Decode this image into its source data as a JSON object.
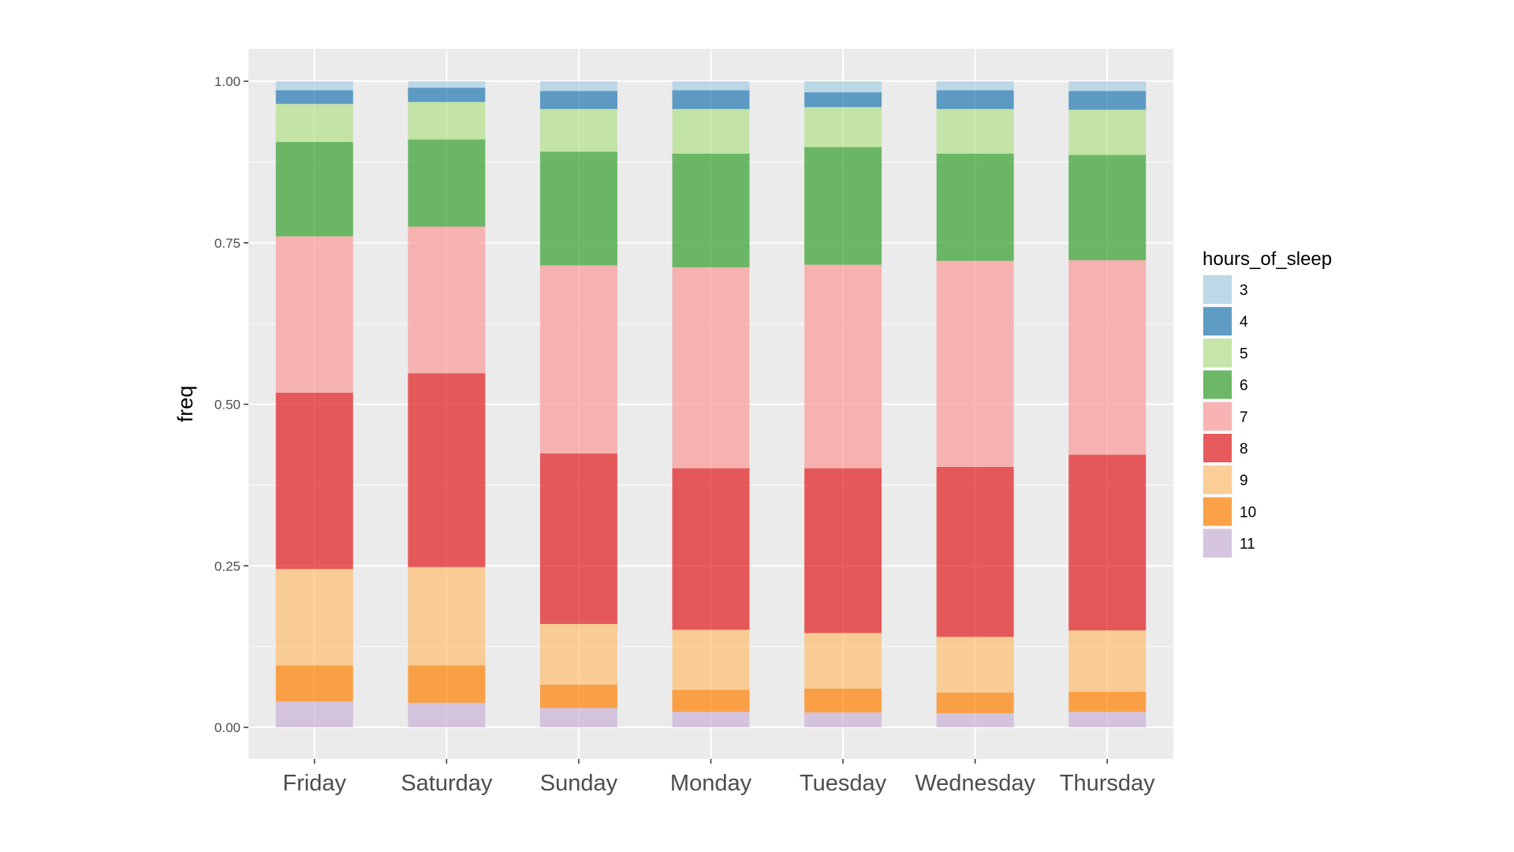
{
  "chart_data": {
    "type": "bar",
    "stacked": true,
    "title": "",
    "xlabel": "",
    "ylabel": "freq",
    "ylim": [
      0,
      1
    ],
    "yticks": [
      "0.00",
      "0.25",
      "0.50",
      "0.75",
      "1.00"
    ],
    "grid": true,
    "legend_position": "right",
    "legend_title": "hours_of_sleep",
    "categories": [
      "Friday",
      "Saturday",
      "Sunday",
      "Monday",
      "Tuesday",
      "Wednesday",
      "Thursday"
    ],
    "series": [
      {
        "name": "11",
        "color": "#cab2d6",
        "values": [
          0.04,
          0.038,
          0.03,
          0.024,
          0.023,
          0.022,
          0.024
        ]
      },
      {
        "name": "10",
        "color": "#ff7f00",
        "values": [
          0.056,
          0.058,
          0.036,
          0.034,
          0.037,
          0.032,
          0.031
        ]
      },
      {
        "name": "9",
        "color": "#fdbf6f",
        "values": [
          0.149,
          0.152,
          0.094,
          0.093,
          0.086,
          0.086,
          0.095
        ]
      },
      {
        "name": "8",
        "color": "#e31a1c",
        "values": [
          0.273,
          0.3,
          0.264,
          0.25,
          0.255,
          0.263,
          0.272
        ]
      },
      {
        "name": "7",
        "color": "#fb9a99",
        "values": [
          0.242,
          0.227,
          0.291,
          0.311,
          0.315,
          0.319,
          0.301
        ]
      },
      {
        "name": "6",
        "color": "#33a02c",
        "values": [
          0.146,
          0.135,
          0.176,
          0.176,
          0.182,
          0.166,
          0.163
        ]
      },
      {
        "name": "5",
        "color": "#b2df8a",
        "values": [
          0.059,
          0.058,
          0.066,
          0.069,
          0.062,
          0.069,
          0.07
        ]
      },
      {
        "name": "4",
        "color": "#1f78b4",
        "values": [
          0.021,
          0.022,
          0.028,
          0.029,
          0.023,
          0.029,
          0.029
        ]
      },
      {
        "name": "3",
        "color": "#a6cee3",
        "values": [
          0.014,
          0.01,
          0.015,
          0.014,
          0.017,
          0.014,
          0.015
        ]
      }
    ],
    "legend_order": [
      "3",
      "4",
      "5",
      "6",
      "7",
      "8",
      "9",
      "10",
      "11"
    ]
  },
  "panel_background": "#ebebeb",
  "gridline_color": "#ffffff",
  "bar_opacity": 0.7
}
